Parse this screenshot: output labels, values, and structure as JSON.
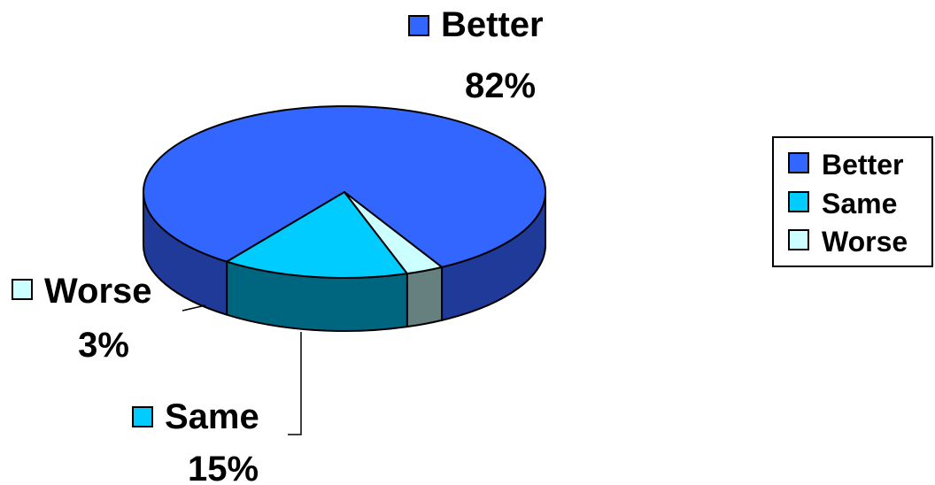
{
  "chart_data": {
    "type": "pie",
    "title": "",
    "three_d": true,
    "slices": [
      {
        "name": "Better",
        "value": 82,
        "label": "82%",
        "color": "#3366FF",
        "side_color": "#1F3A99"
      },
      {
        "name": "Same",
        "value": 15,
        "label": "15%",
        "color": "#00CCFF",
        "side_color": "#006680"
      },
      {
        "name": "Worse",
        "value": 3,
        "label": "3%",
        "color": "#CCFFFF",
        "side_color": "#668080"
      }
    ],
    "legend": {
      "placement": "right",
      "entries": [
        "Better",
        "Same",
        "Worse"
      ]
    }
  }
}
